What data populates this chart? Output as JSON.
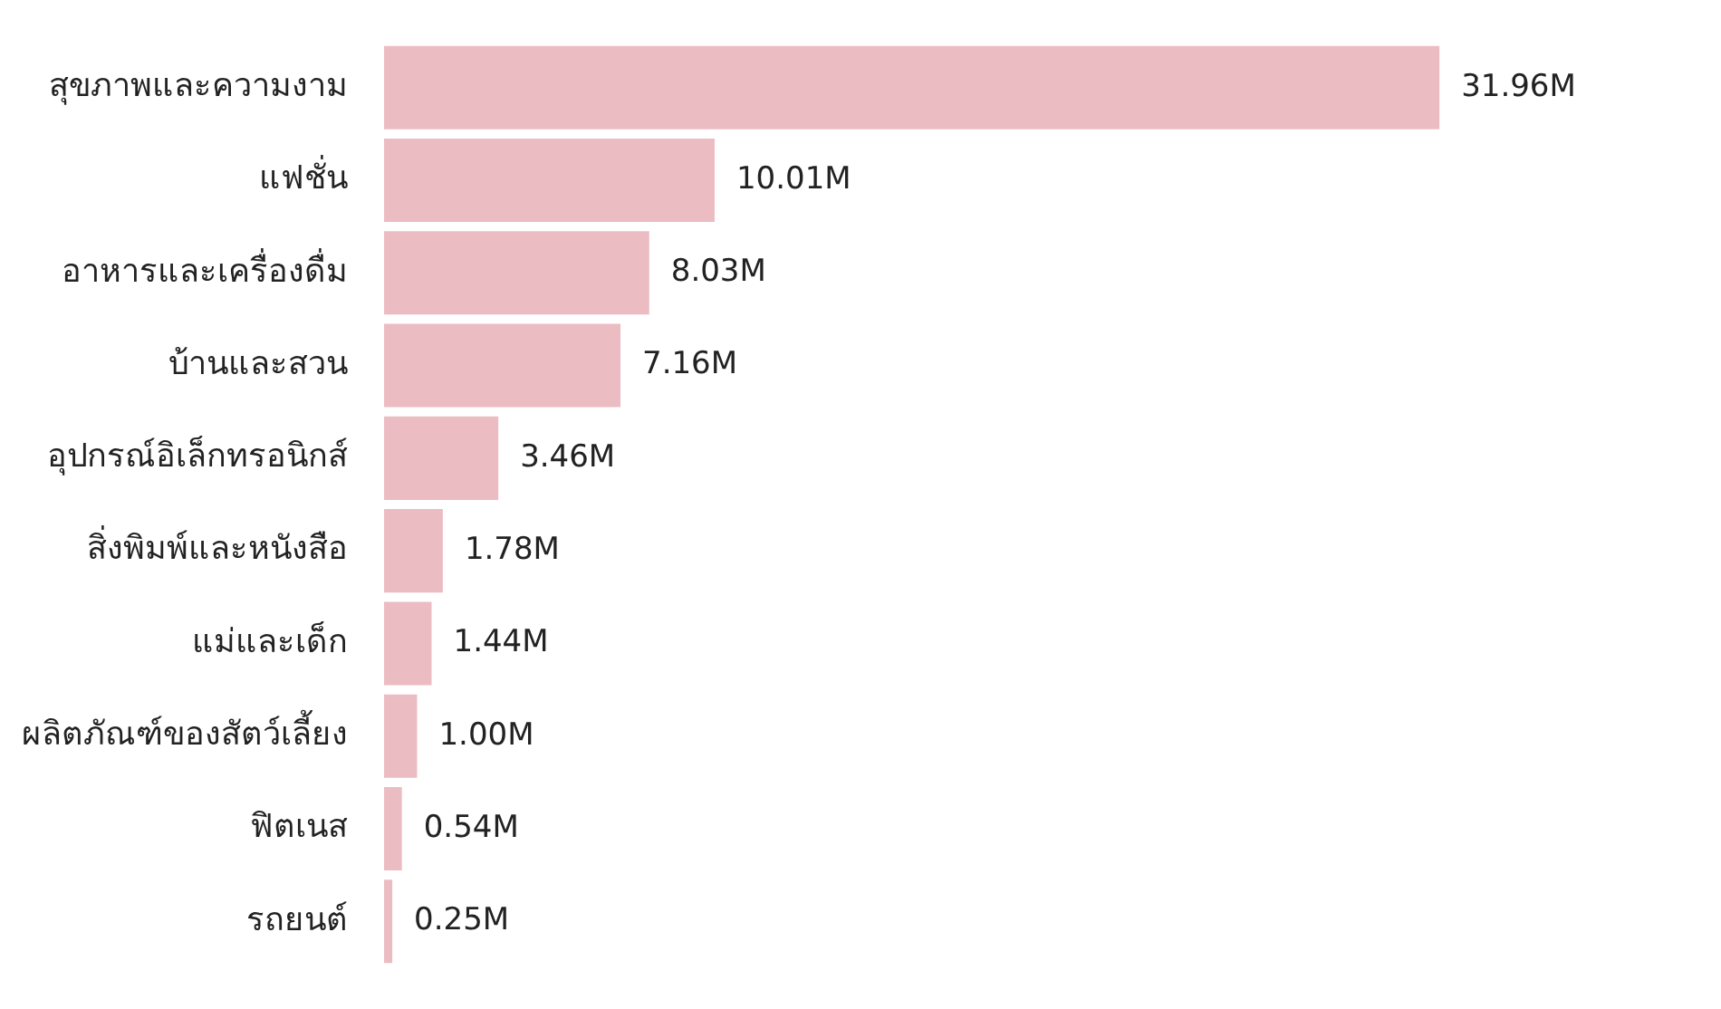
{
  "chart_data": {
    "type": "bar",
    "orientation": "horizontal",
    "categories": [
      "สุขภาพและความงาม",
      "แฟชั่น",
      "อาหารและเครื่องดื่ม",
      "บ้านและสวน",
      "อุปกรณ์อิเล็กทรอนิกส์",
      "สิ่งพิมพ์และหนังสือ",
      "แม่และเด็ก",
      "ผลิตภัณฑ์ของสัตว์เลี้ยง",
      "ฟิตเนส",
      "รถยนต์"
    ],
    "values": [
      31.96,
      10.01,
      8.03,
      7.16,
      3.46,
      1.78,
      1.44,
      1.0,
      0.54,
      0.25
    ],
    "value_labels": [
      "31.96M",
      "10.01M",
      "8.03M",
      "7.16M",
      "3.46M",
      "1.78M",
      "1.44M",
      "1.00M",
      "0.54M",
      "0.25M"
    ],
    "color": "#ecbcc3",
    "legend": false,
    "grid": false
  }
}
